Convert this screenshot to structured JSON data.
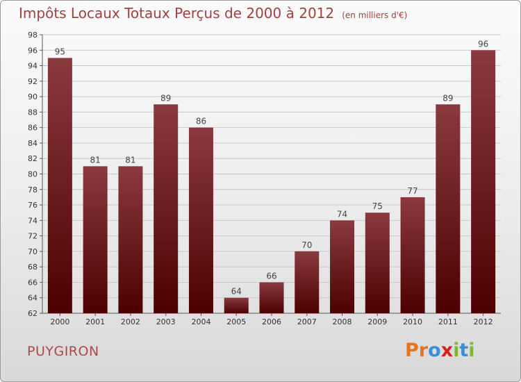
{
  "header": {
    "title": "Impôts Locaux Totaux Perçus de 2000 à 2012",
    "unit": "(en milliers d'€)"
  },
  "footer": {
    "commune": "PUYGIRON",
    "brand": "Proxiti"
  },
  "colors": {
    "title": "#a04040",
    "bar_top": "#8a3a3f",
    "bar_bottom": "#4e0000",
    "grid": "#c8c8c8",
    "brand_letters": [
      "#e8731c",
      "#e8731c",
      "#3a8fd6",
      "#d81e1e",
      "#7cb833",
      "#3a8fd6",
      "#7cb833"
    ]
  },
  "chart_data": {
    "type": "bar",
    "title": "Impôts Locaux Totaux Perçus de 2000 à 2012",
    "categories": [
      "2000",
      "2001",
      "2002",
      "2003",
      "2004",
      "2005",
      "2006",
      "2007",
      "2008",
      "2009",
      "2010",
      "2011",
      "2012"
    ],
    "values": [
      95,
      81,
      81,
      89,
      86,
      64,
      66,
      70,
      74,
      75,
      77,
      89,
      96
    ],
    "ylim": [
      62,
      98
    ],
    "yticks": [
      62,
      64,
      66,
      68,
      70,
      72,
      74,
      76,
      78,
      80,
      82,
      84,
      86,
      88,
      90,
      92,
      94,
      96,
      98
    ],
    "grid": true
  }
}
